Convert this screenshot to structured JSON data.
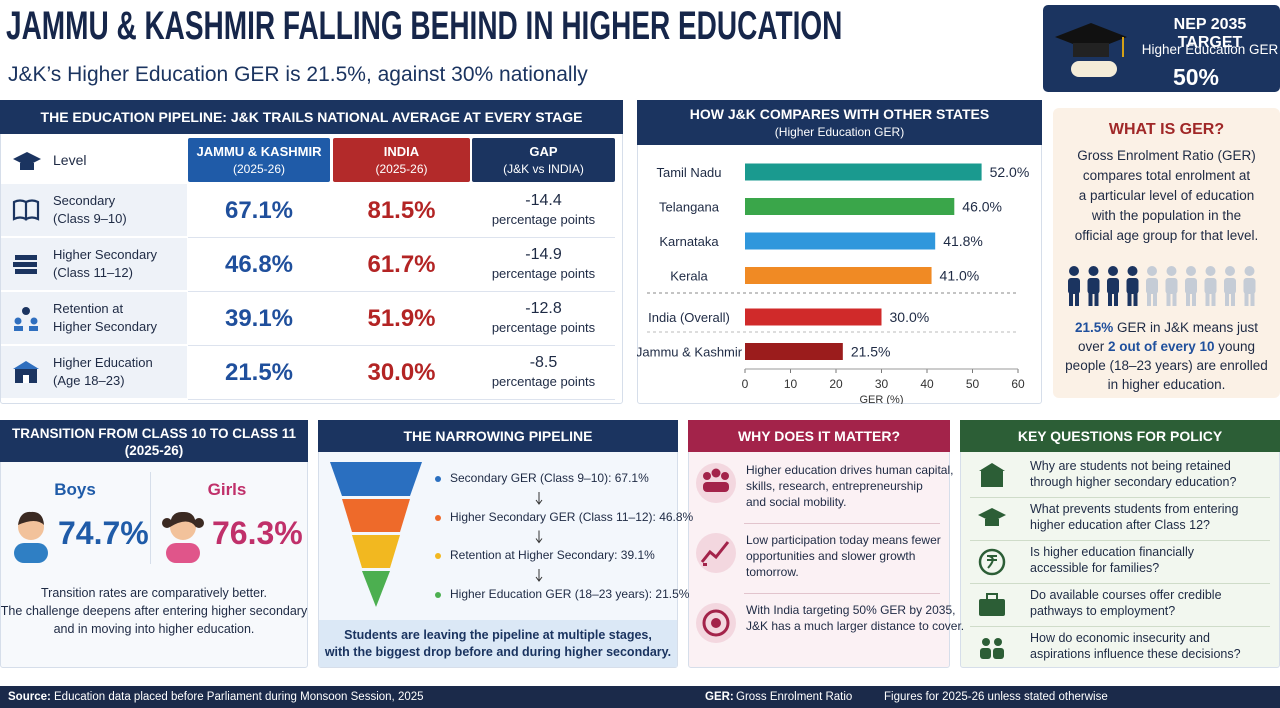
{
  "header": {
    "title": "JAMMU & KASHMIR FALLING BEHIND IN HIGHER EDUCATION",
    "subtitle": "J&K’s Higher Education GER is 21.5%, against 30% nationally"
  },
  "target": {
    "label": "NEP 2035 TARGET",
    "sublabel": "Higher Education GER",
    "value": "50%"
  },
  "pipeline_table": {
    "title": "THE EDUCATION PIPELINE: J&K TRAILS NATIONAL AVERAGE AT EVERY STAGE",
    "columns": [
      {
        "name": "Level"
      },
      {
        "name": "JAMMU & KASHMIR",
        "sub": "(2025-26)"
      },
      {
        "name": "INDIA",
        "sub": "(2025-26)"
      },
      {
        "name": "GAP",
        "sub": "(J&K vs INDIA)"
      }
    ],
    "rows": [
      {
        "level": [
          "Secondary",
          "(Class 9–10)"
        ],
        "jk": "67.1%",
        "india": "81.5%",
        "gap": "-14.4",
        "gap_unit": "percentage points"
      },
      {
        "level": [
          "Higher Secondary",
          "(Class 11–12)"
        ],
        "jk": "46.8%",
        "india": "61.7%",
        "gap": "-14.9",
        "gap_unit": "percentage points"
      },
      {
        "level": [
          "Retention at",
          "Higher Secondary"
        ],
        "jk": "39.1%",
        "india": "51.9%",
        "gap": "-12.8",
        "gap_unit": "percentage points"
      },
      {
        "level": [
          "Higher Education",
          "(Age 18–23)"
        ],
        "jk": "21.5%",
        "india": "30.0%",
        "gap": "-8.5",
        "gap_unit": "percentage points"
      }
    ]
  },
  "chart_data": {
    "type": "bar",
    "orientation": "horizontal",
    "title": "HOW J&K COMPARES WITH OTHER STATES",
    "subtitle": "(Higher Education GER)",
    "categories": [
      "Tamil Nadu",
      "Telangana",
      "Karnataka",
      "Kerala",
      "India (Overall)",
      "Jammu & Kashmir"
    ],
    "values": [
      52.0,
      46.0,
      41.8,
      41.0,
      30.0,
      21.5
    ],
    "value_labels": [
      "52.0%",
      "46.0%",
      "41.8%",
      "41.0%",
      "30.0%",
      "21.5%"
    ],
    "colors": [
      "#1a9a8f",
      "#3aa64a",
      "#2f97dc",
      "#f08a24",
      "#d02a2a",
      "#9b1c1c"
    ],
    "xlim": [
      0,
      60
    ],
    "xticks": [
      0,
      10,
      20,
      30,
      40,
      50,
      60
    ],
    "xlabel": "GER (%)"
  },
  "ger": {
    "title": "WHAT IS GER?",
    "description": [
      "Gross Enrolment Ratio (GER)",
      "compares total enrolment at",
      "a particular level of education",
      "with the population in the",
      "official age group for that level."
    ],
    "note": {
      "value": "21.5%",
      "text1": " GER in J&K means just over ",
      "highlight": "2 out of every 10",
      "text2": " young people (18–23 years) are enrolled in higher education."
    }
  },
  "transition": {
    "title": "TRANSITION FROM CLASS 10 TO CLASS 11",
    "subtitle": "(2025-26)",
    "boys": {
      "label": "Boys",
      "value": "74.7%"
    },
    "girls": {
      "label": "Girls",
      "value": "76.3%"
    },
    "note": [
      "Transition rates are comparatively better.",
      "The challenge deepens after entering higher secondary",
      "and in moving into higher education."
    ]
  },
  "funnel": {
    "title": "THE NARROWING PIPELINE",
    "stages": [
      "Secondary GER (Class 9–10): 67.1%",
      "Higher Secondary GER (Class 11–12): 46.8%",
      "Retention at Higher Secondary: 39.1%",
      "Higher Education GER (18–23 years): 21.5%"
    ],
    "footer": [
      "Students are leaving the pipeline at multiple stages,",
      "with the biggest drop before and during higher secondary."
    ]
  },
  "why": {
    "title": "WHY DOES IT MATTER?",
    "items": [
      [
        "Higher education drives human capital,",
        "skills, research, entrepreneurship",
        "and social mobility."
      ],
      [
        "Low participation today means fewer",
        "opportunities and slower growth",
        "tomorrow."
      ],
      [
        "With India targeting 50% GER by 2035,",
        "J&K has a much larger distance to cover."
      ]
    ]
  },
  "policy": {
    "title": "KEY QUESTIONS FOR POLICY",
    "questions": [
      [
        "Why are students not being retained",
        "through higher secondary education?"
      ],
      [
        "What prevents students from entering",
        "higher education after Class 12?"
      ],
      [
        "Is higher education financially",
        "accessible for families?"
      ],
      [
        "Do available courses offer credible",
        "pathways to employment?"
      ],
      [
        "How do economic insecurity and",
        "aspirations influence these decisions?"
      ]
    ]
  },
  "footer": {
    "source_label": "Source:",
    "source": "Education data placed before Parliament during Monsoon Session, 2025",
    "ger_label": "GER:",
    "ger": "Gross Enrolment Ratio",
    "note": "Figures for 2025-26 unless stated otherwise"
  }
}
